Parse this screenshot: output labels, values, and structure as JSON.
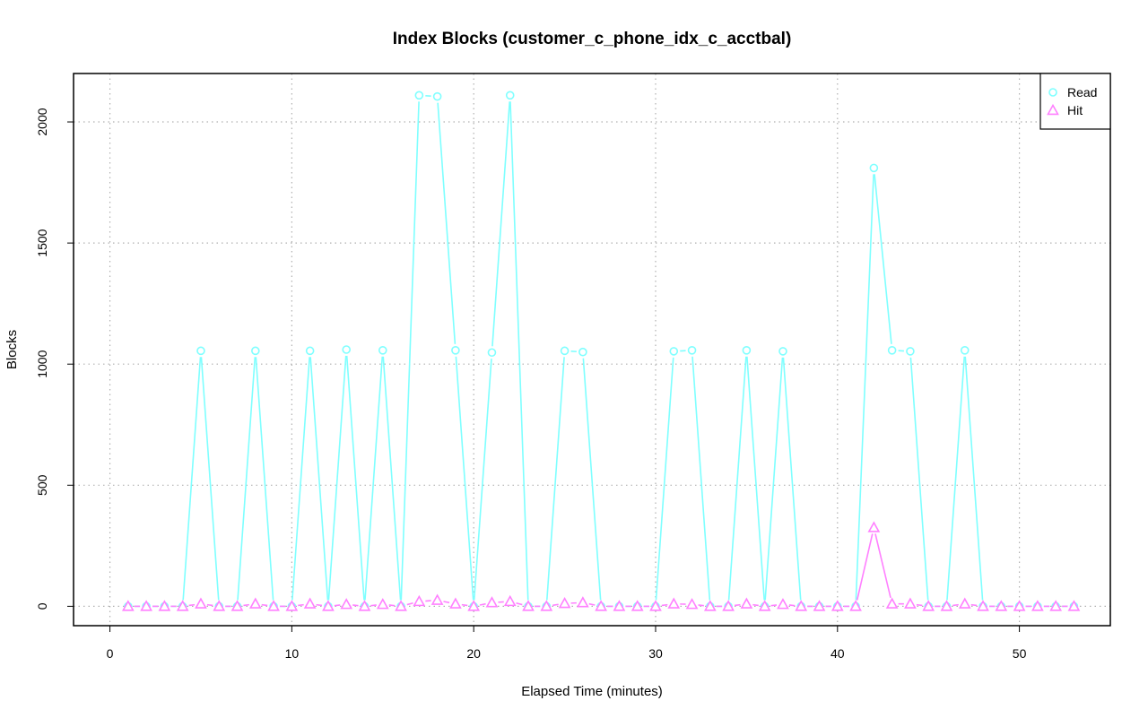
{
  "chart_data": {
    "type": "line",
    "title": "Index Blocks (customer_c_phone_idx_c_acctbal)",
    "xlabel": "Elapsed Time (minutes)",
    "ylabel": "Blocks",
    "xlim": [
      -2,
      55
    ],
    "ylim": [
      -80,
      2200
    ],
    "x_ticks": [
      0,
      10,
      20,
      30,
      40,
      50
    ],
    "y_ticks": [
      0,
      500,
      1000,
      1500,
      2000
    ],
    "grid": true,
    "legend_position": "top-right",
    "x": [
      1,
      2,
      3,
      4,
      5,
      6,
      7,
      8,
      9,
      10,
      11,
      12,
      13,
      14,
      15,
      16,
      17,
      18,
      19,
      20,
      21,
      22,
      23,
      24,
      25,
      26,
      27,
      28,
      29,
      30,
      31,
      32,
      33,
      34,
      35,
      36,
      37,
      38,
      39,
      40,
      41,
      42,
      43,
      44,
      45,
      46,
      47,
      48,
      49,
      50,
      51,
      52,
      53
    ],
    "series": [
      {
        "name": "Read",
        "color": "#7fffff",
        "marker": "circle",
        "values": [
          0,
          0,
          0,
          0,
          1055,
          0,
          0,
          1055,
          0,
          0,
          1055,
          0,
          1060,
          0,
          1057,
          0,
          2110,
          2105,
          1057,
          0,
          1048,
          2110,
          0,
          0,
          1055,
          1050,
          0,
          0,
          0,
          0,
          1053,
          1057,
          0,
          0,
          1057,
          0,
          1053,
          0,
          0,
          0,
          0,
          1810,
          1057,
          1053,
          0,
          0,
          1057,
          0,
          0,
          0,
          0,
          0,
          0
        ]
      },
      {
        "name": "Hit",
        "color": "#ff80ff",
        "marker": "triangle",
        "values": [
          0,
          0,
          0,
          0,
          10,
          0,
          0,
          10,
          0,
          0,
          10,
          0,
          8,
          0,
          8,
          0,
          20,
          25,
          10,
          0,
          15,
          20,
          0,
          0,
          12,
          15,
          0,
          0,
          0,
          0,
          10,
          8,
          0,
          0,
          10,
          0,
          8,
          0,
          0,
          0,
          0,
          325,
          10,
          10,
          0,
          0,
          10,
          0,
          0,
          0,
          0,
          0,
          0
        ]
      }
    ]
  }
}
